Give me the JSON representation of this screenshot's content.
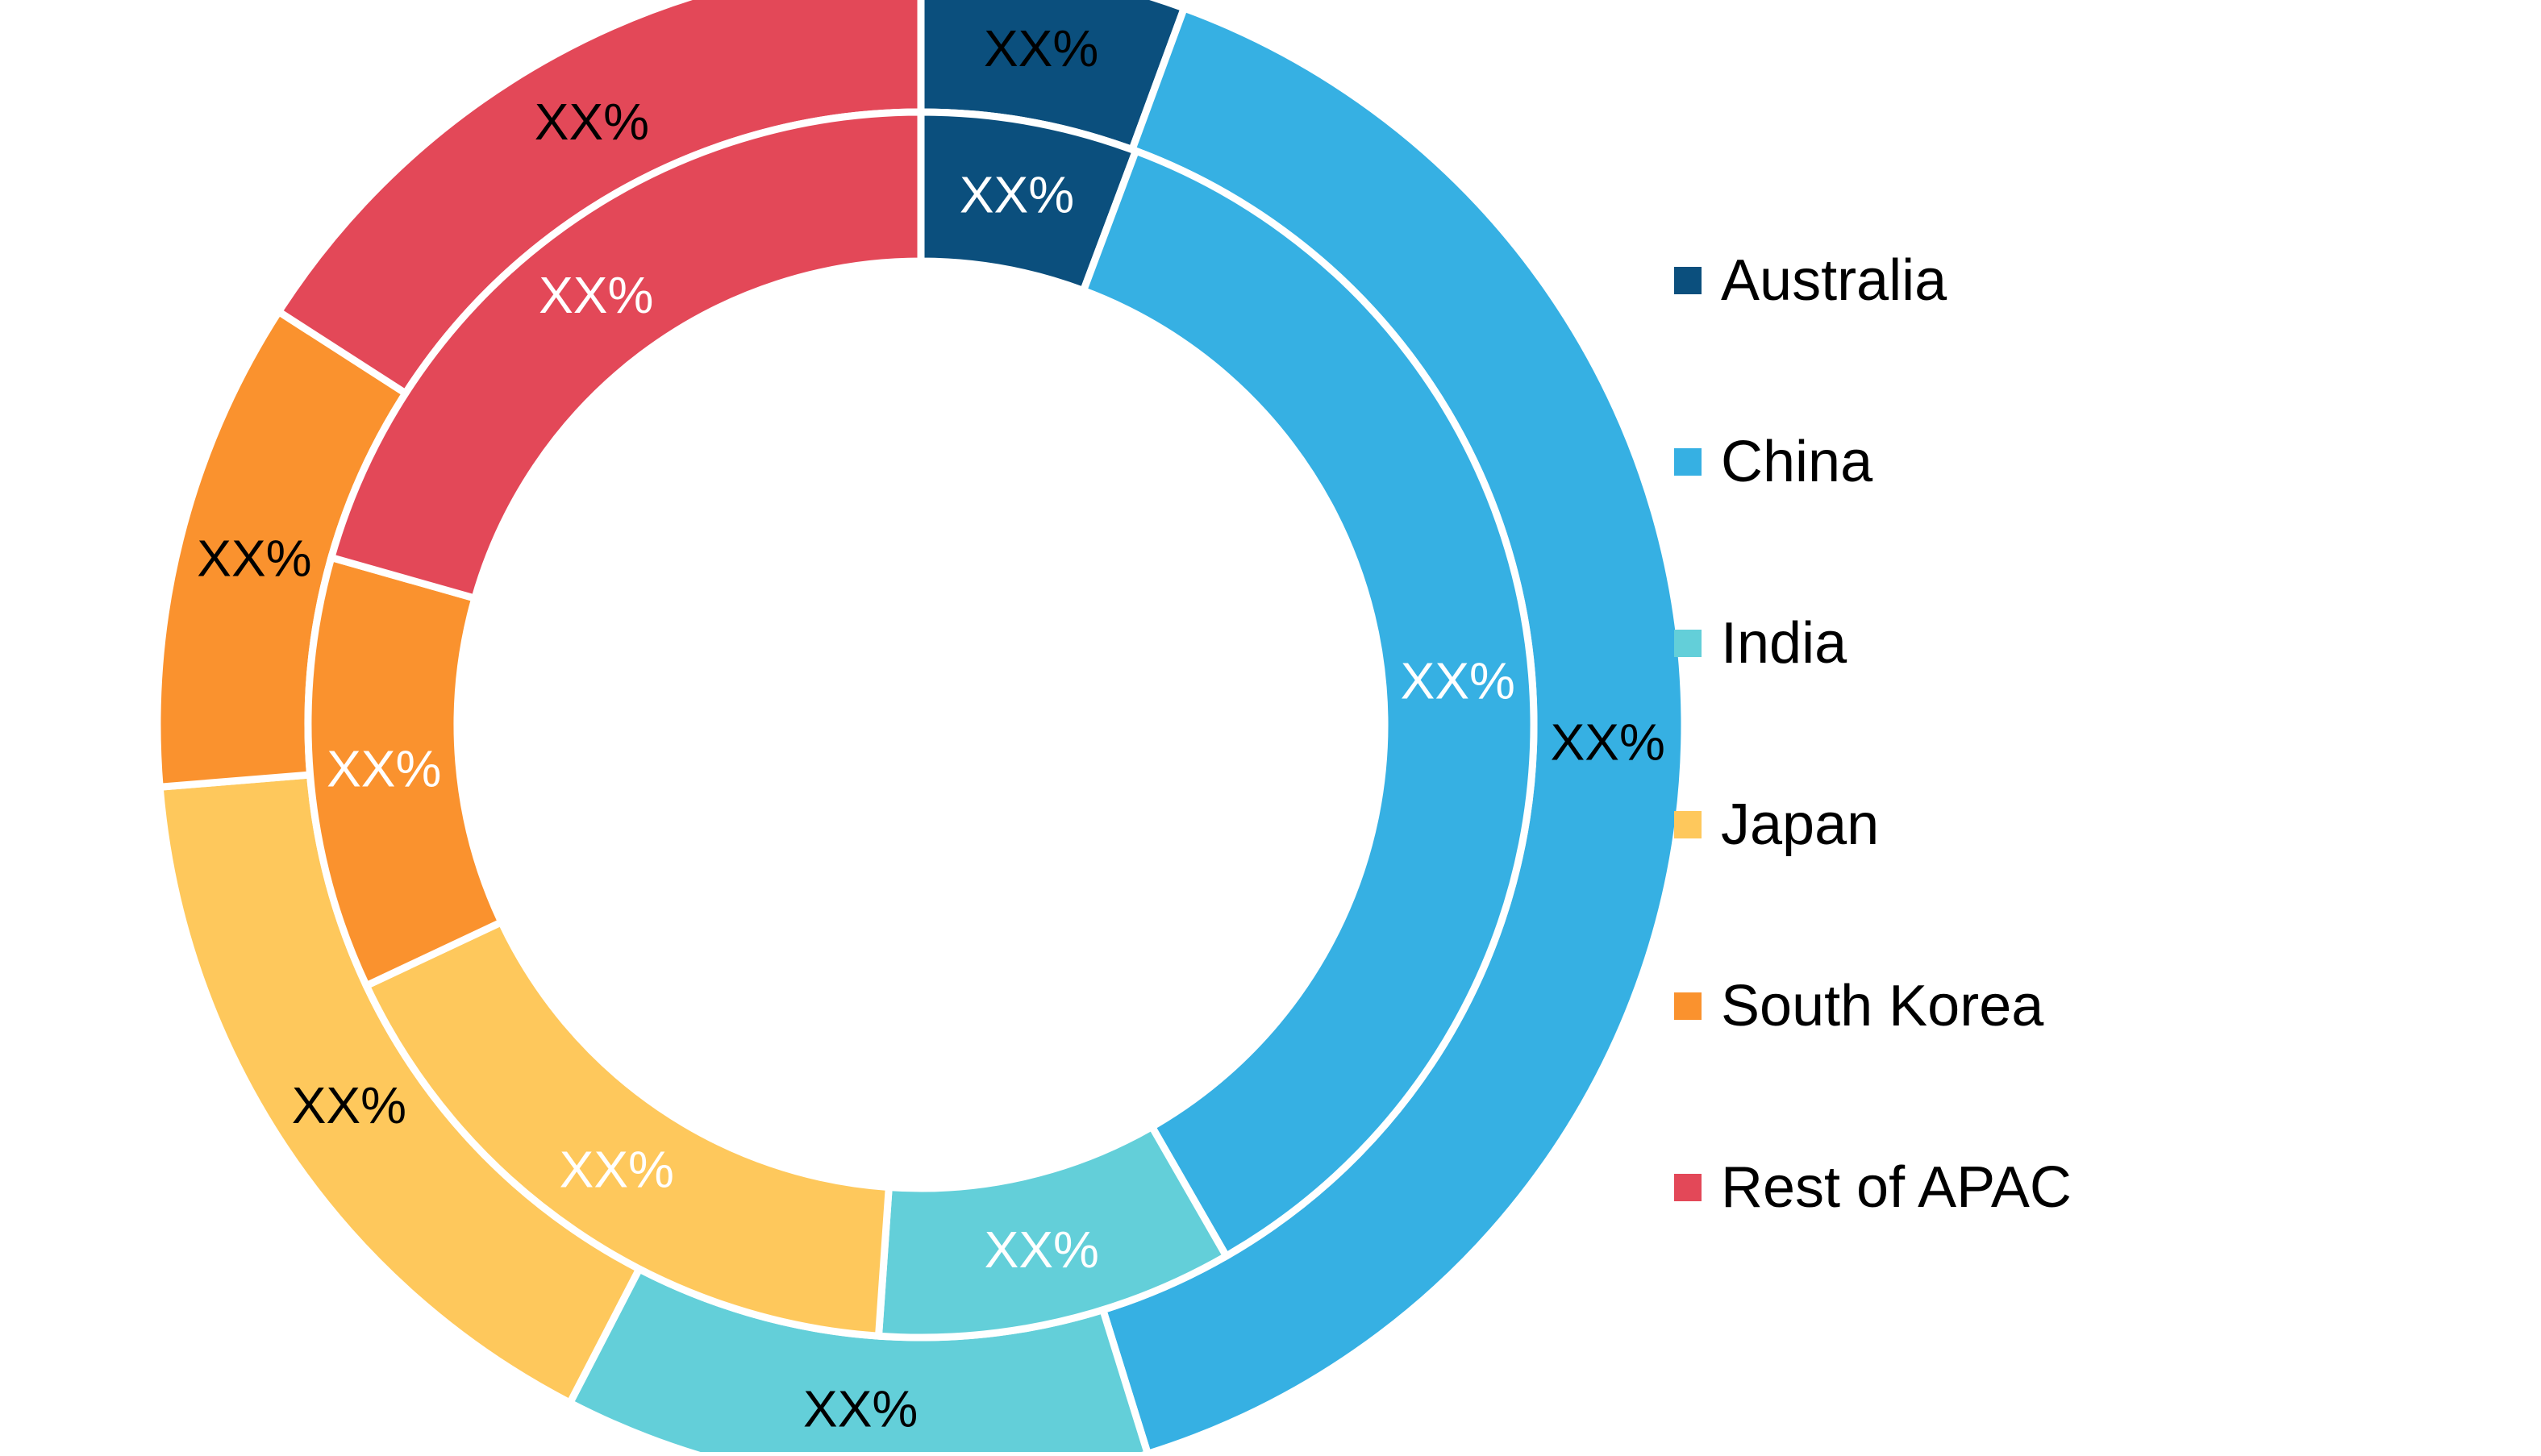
{
  "chart_data": {
    "type": "pie",
    "style": "nested-donut",
    "categories": [
      "Australia",
      "China",
      "India",
      "Japan",
      "South Korea",
      "Rest of APAC"
    ],
    "colors": [
      "#0B4F7D",
      "#36B0E3",
      "#63CFD9",
      "#FEC85C",
      "#FA922E",
      "#E34858"
    ],
    "label_colors": {
      "outer": "#000000",
      "inner": "#ffffff"
    },
    "series": [
      {
        "ring": "outer",
        "values": [
          5.6,
          39.6,
          12.4,
          16.1,
          10.4,
          15.9
        ],
        "labels": [
          "XX%",
          "XX%",
          "XX%",
          "XX%",
          "XX%",
          "XX%"
        ]
      },
      {
        "ring": "inner",
        "values": [
          5.7,
          36.0,
          9.4,
          16.9,
          11.4,
          20.6
        ],
        "labels": [
          "XX%",
          "XX%",
          "XX%",
          "XX%",
          "XX%",
          "XX%"
        ]
      }
    ],
    "start_angle_deg": 0,
    "direction": "clockwise",
    "legend_position": "right"
  }
}
